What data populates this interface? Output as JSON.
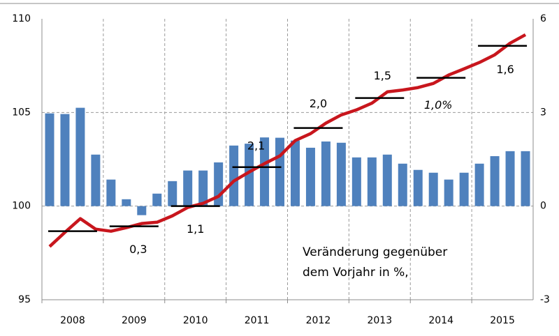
{
  "chart_data": {
    "type": "bar",
    "categories": [
      "2008",
      null,
      null,
      null,
      "2009",
      null,
      null,
      null,
      "2010",
      null,
      null,
      null,
      "2011",
      null,
      null,
      null,
      "2012",
      null,
      null,
      null,
      "2013",
      null,
      null,
      null,
      "2014",
      null,
      null,
      null,
      "2015",
      null,
      null,
      null
    ],
    "series": [
      {
        "type": "bar",
        "axis": "y2",
        "color": "#4f81bd",
        "values": [
          2.97,
          2.95,
          3.15,
          1.65,
          0.85,
          0.22,
          -0.29,
          0.4,
          0.8,
          1.14,
          1.14,
          1.4,
          1.94,
          2.0,
          2.2,
          2.19,
          2.1,
          1.87,
          2.07,
          2.03,
          1.56,
          1.56,
          1.65,
          1.36,
          1.16,
          1.07,
          0.85,
          1.07,
          1.36,
          1.6,
          1.76,
          1.76
        ]
      },
      {
        "type": "line",
        "axis": "y",
        "color": "#c8161d",
        "values": [
          97.84,
          98.6,
          99.33,
          98.77,
          98.66,
          98.85,
          99.07,
          99.14,
          99.48,
          99.93,
          100.15,
          100.52,
          101.34,
          101.82,
          102.27,
          102.68,
          103.5,
          103.87,
          104.43,
          104.87,
          105.14,
          105.5,
          106.1,
          106.2,
          106.33,
          106.55,
          107.0,
          107.33,
          107.67,
          108.08,
          108.7,
          109.15
        ]
      }
    ],
    "annual_values": [
      98.66,
      98.92,
      100.0,
      102.08,
      104.17,
      105.77,
      106.85,
      108.56
    ],
    "annual_color": "#000000",
    "annual_growth": [
      null,
      0.3,
      1.1,
      2.1,
      2.0,
      1.5,
      1.0,
      1.6
    ],
    "annual_growth_labels": [
      null,
      "0,3",
      "1,1",
      "2,1",
      "2,0",
      "1,5",
      "1,0%",
      "1,6"
    ],
    "annotation": [
      "Veränderung gegenüber",
      "dem Vorjahr in %,"
    ],
    "ylim": [
      95,
      110
    ],
    "yticks": [
      95,
      100,
      105,
      110
    ],
    "y2lim": [
      -3,
      6
    ],
    "y2ticks": [
      -3,
      0,
      3,
      6
    ],
    "grid": true
  }
}
